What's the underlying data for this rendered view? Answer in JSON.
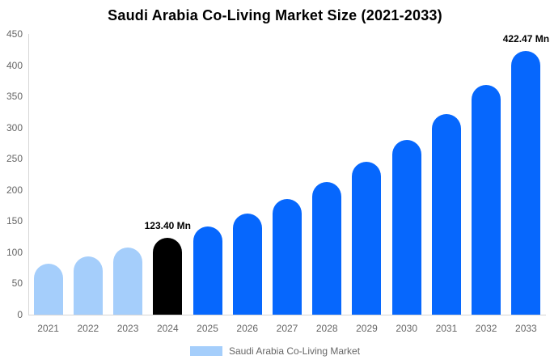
{
  "title": "Saudi Arabia Co-Living Market Size (2021-2033)",
  "chart_data": {
    "type": "bar",
    "title": "Saudi Arabia Co-Living Market Size (2021-2033)",
    "categories": [
      "2021",
      "2022",
      "2023",
      "2024",
      "2025",
      "2026",
      "2027",
      "2028",
      "2029",
      "2030",
      "2031",
      "2032",
      "2033"
    ],
    "values": [
      81.9,
      93.9,
      107.6,
      123.4,
      141.5,
      162.2,
      186.0,
      213.3,
      244.5,
      280.4,
      321.5,
      368.6,
      422.47
    ],
    "unit": "Mn",
    "xlabel": "",
    "ylabel": "",
    "ylim": [
      0,
      450
    ],
    "yticks": [
      0,
      50,
      100,
      150,
      200,
      250,
      300,
      350,
      400,
      450
    ],
    "grid": false,
    "legend_position": "bottom",
    "bar_colors": [
      "#a5cefb",
      "#a5cefb",
      "#a5cefb",
      "#000000",
      "#0667fd",
      "#0667fd",
      "#0667fd",
      "#0667fd",
      "#0667fd",
      "#0667fd",
      "#0667fd",
      "#0667fd",
      "#0667fd"
    ],
    "data_labels": [
      {
        "category": "2024",
        "text": "123.40 Mn"
      },
      {
        "category": "2033",
        "text": "422.47 Mn"
      }
    ]
  },
  "legend": {
    "label": "Saudi Arabia Co-Living Market",
    "swatch_color": "#a5cefb"
  },
  "colors": {
    "historical_bar": "#a5cefb",
    "base_year_bar": "#000000",
    "forecast_bar": "#0667fd",
    "axis_line": "#d6d6d6",
    "tick_text": "#666666",
    "data_label_text": "#000000",
    "background": "#ffffff"
  }
}
